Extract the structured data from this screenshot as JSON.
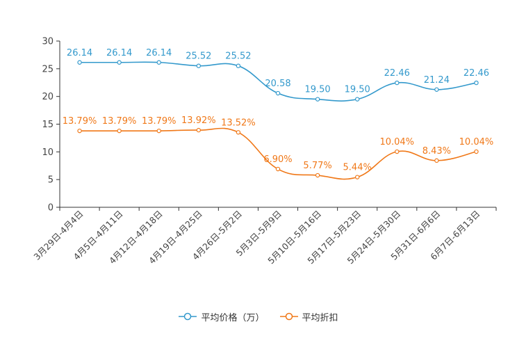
{
  "chart_data": {
    "type": "line",
    "title": "",
    "xlabel": "",
    "ylabel": "",
    "ylim": [
      0,
      30
    ],
    "yticks": [
      0,
      5,
      10,
      15,
      20,
      25,
      30
    ],
    "categories": [
      "3月29日-4月4日",
      "4月5日-4月11日",
      "4月12日-4月18日",
      "4月19日-4月25日",
      "4月26日-5月2日",
      "5月3日-5月9日",
      "5月10日-5月16日",
      "5月17日-5月23日",
      "5月24日-5月30日",
      "5月31日-6月6日",
      "6月7日-6月13日"
    ],
    "series": [
      {
        "name": "平均价格（万）",
        "color": "#3399cc",
        "values": [
          26.14,
          26.14,
          26.14,
          25.52,
          25.52,
          20.58,
          19.5,
          19.5,
          22.46,
          21.24,
          22.46
        ],
        "labels": [
          "26.14",
          "26.14",
          "26.14",
          "25.52",
          "25.52",
          "20.58",
          "19.50",
          "19.50",
          "22.46",
          "21.24",
          "22.46"
        ]
      },
      {
        "name": "平均折扣",
        "color": "#f07818",
        "values": [
          13.79,
          13.79,
          13.79,
          13.92,
          13.52,
          6.9,
          5.77,
          5.44,
          10.04,
          8.43,
          10.04
        ],
        "labels": [
          "13.79%",
          "13.79%",
          "13.79%",
          "13.92%",
          "13.52%",
          "6.90%",
          "5.77%",
          "5.44%",
          "10.04%",
          "8.43%",
          "10.04%"
        ]
      }
    ],
    "legend": "bottom-center",
    "grid": false
  }
}
